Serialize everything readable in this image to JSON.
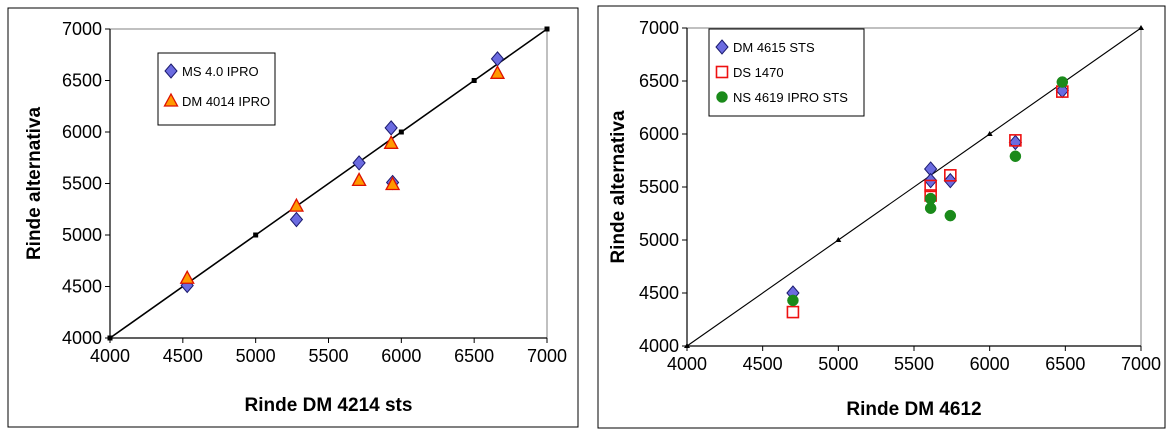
{
  "chart_data": [
    {
      "type": "scatter",
      "xlabel": "Rinde DM 4214 sts",
      "ylabel": "Rinde alternativa",
      "xlim": [
        4000,
        7000
      ],
      "ylim": [
        4000,
        7000
      ],
      "xticks": [
        "4000",
        "4500",
        "5000",
        "5500",
        "6000",
        "6500",
        "7000"
      ],
      "yticks": [
        "4000",
        "4500",
        "5000",
        "5500",
        "6000",
        "6500",
        "7000"
      ],
      "grid": false,
      "legend_position": "top-left",
      "reference_line": {
        "x": [
          4000,
          5000,
          6000,
          6500,
          7000
        ],
        "y": [
          4000,
          5000,
          6000,
          6500,
          7000
        ]
      },
      "series": [
        {
          "name": "MS 4.0 IPRO",
          "marker": "diamond",
          "color": "#6b6be0",
          "x": [
            4530,
            5280,
            5710,
            5930,
            5940,
            6660
          ],
          "y": [
            4510,
            5150,
            5700,
            6040,
            5510,
            6710
          ]
        },
        {
          "name": "DM 4014 IPRO",
          "marker": "triangle",
          "color": "#ff9900",
          "x": [
            4530,
            5280,
            5710,
            5930,
            5940,
            6660
          ],
          "y": [
            4580,
            5280,
            5530,
            5890,
            5490,
            6570
          ]
        }
      ]
    },
    {
      "type": "scatter",
      "xlabel": "Rinde DM 4612",
      "ylabel": "Rinde alternativa",
      "xlim": [
        4000,
        7000
      ],
      "ylim": [
        4000,
        7000
      ],
      "xticks": [
        "4000",
        "4500",
        "5000",
        "5500",
        "6000",
        "6500",
        "7000"
      ],
      "yticks": [
        "4000",
        "4500",
        "5000",
        "5500",
        "6000",
        "6500",
        "7000"
      ],
      "grid": false,
      "legend_position": "top-left",
      "reference_line": {
        "x": [
          4000,
          5000,
          6000,
          7000
        ],
        "y": [
          4000,
          5000,
          6000,
          7000
        ]
      },
      "series": [
        {
          "name": "DM 4615 STS",
          "marker": "diamond",
          "color": "#6b6be0",
          "x": [
            4700,
            5610,
            5610,
            5740,
            6170,
            6480
          ],
          "y": [
            4500,
            5670,
            5560,
            5560,
            5920,
            6410
          ]
        },
        {
          "name": "DS 1470",
          "marker": "square",
          "color": "#ee1111",
          "x": [
            4700,
            5610,
            5610,
            5740,
            6170,
            6480
          ],
          "y": [
            4320,
            5510,
            5420,
            5610,
            5940,
            6400
          ]
        },
        {
          "name": "NS 4619 IPRO STS",
          "marker": "circle",
          "color": "#1a8a1a",
          "x": [
            4700,
            5610,
            5610,
            5610,
            5740,
            6170,
            6480
          ],
          "y": [
            4430,
            5300,
            5390,
            5390,
            5230,
            5790,
            6490
          ]
        }
      ]
    }
  ]
}
